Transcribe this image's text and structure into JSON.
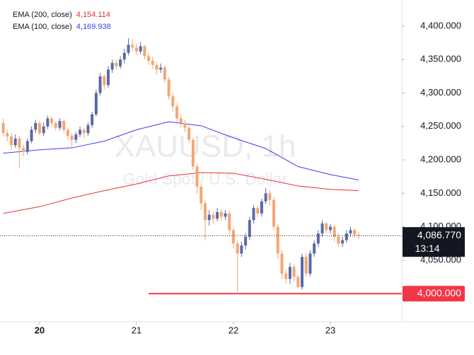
{
  "chart_data": {
    "type": "candlestick",
    "title": "XAUUSD, 1h",
    "subtitle": "Gold Spot / U.S. Dollar",
    "up_color": "#5b6aa6",
    "down_color": "#f5a672",
    "xlim": [
      -9.8,
      89.7
    ],
    "xticks": [
      {
        "value": 0,
        "label": "20"
      },
      {
        "value": 24,
        "label": "21"
      },
      {
        "value": 48,
        "label": "22"
      },
      {
        "value": 72,
        "label": "23"
      }
    ],
    "ylim": [
      3958,
      4439
    ],
    "yticks": [
      {
        "value": 4050,
        "label": "4,050.000"
      },
      {
        "value": 4100,
        "label": "4,100.000"
      },
      {
        "value": 4150,
        "label": "4,150.000"
      },
      {
        "value": 4200,
        "label": "4,200.000"
      },
      {
        "value": 4250,
        "label": "4,250.000"
      },
      {
        "value": 4300,
        "label": "4,300.000"
      },
      {
        "value": 4350,
        "label": "4,350.000"
      },
      {
        "value": 4400,
        "label": "4,400.000"
      }
    ],
    "x": [
      -9,
      -8,
      -7,
      -6,
      -5,
      -4,
      -3,
      -2,
      -1,
      0,
      1,
      2,
      3,
      4,
      5,
      6,
      7,
      8,
      9,
      10,
      11,
      12,
      13,
      14,
      15,
      16,
      17,
      18,
      19,
      20,
      21,
      22,
      23,
      24,
      25,
      26,
      27,
      28,
      29,
      30,
      31,
      32,
      33,
      34,
      35,
      36,
      37,
      38,
      39,
      40,
      41,
      42,
      43,
      44,
      45,
      46,
      47,
      48,
      49,
      50,
      51,
      52,
      53,
      54,
      55,
      56,
      57,
      58,
      59,
      60,
      61,
      62,
      63,
      64,
      65,
      66,
      67,
      68,
      69,
      70,
      71,
      72,
      73,
      74,
      75,
      76,
      77,
      78,
      79
    ],
    "open": [
      4255,
      4240,
      4235,
      4222,
      4232,
      4218,
      4212,
      4228,
      4245,
      4255,
      4240,
      4250,
      4262,
      4255,
      4248,
      4258,
      4245,
      4236,
      4230,
      4238,
      4245,
      4240,
      4252,
      4268,
      4300,
      4325,
      4312,
      4335,
      4345,
      4340,
      4350,
      4360,
      4372,
      4368,
      4362,
      4370,
      4355,
      4348,
      4342,
      4335,
      4338,
      4320,
      4295,
      4280,
      4262,
      4255,
      4248,
      4230,
      4190,
      4160,
      4135,
      4110,
      4118,
      4112,
      4122,
      4115,
      4120,
      4095,
      4075,
      4060,
      4072,
      4085,
      4110,
      4128,
      4120,
      4138,
      4150,
      4140,
      4100,
      4060,
      4030,
      4022,
      4040,
      4025,
      4010,
      4055,
      4030,
      4060,
      4075,
      4090,
      4105,
      4095,
      4100,
      4085,
      4075,
      4080,
      4090,
      4095,
      4088
    ],
    "high": [
      4262,
      4245,
      4240,
      4238,
      4236,
      4222,
      4232,
      4250,
      4260,
      4258,
      4256,
      4266,
      4265,
      4258,
      4262,
      4260,
      4248,
      4240,
      4242,
      4250,
      4248,
      4256,
      4272,
      4305,
      4330,
      4328,
      4340,
      4350,
      4350,
      4355,
      4366,
      4382,
      4380,
      4374,
      4376,
      4372,
      4360,
      4354,
      4346,
      4344,
      4342,
      4324,
      4300,
      4285,
      4268,
      4260,
      4252,
      4234,
      4195,
      4165,
      4140,
      4125,
      4122,
      4128,
      4126,
      4125,
      4124,
      4100,
      4080,
      4078,
      4090,
      4115,
      4132,
      4132,
      4142,
      4158,
      4155,
      4145,
      4105,
      4065,
      4036,
      4046,
      4044,
      4028,
      4060,
      4060,
      4065,
      4080,
      4095,
      4110,
      4108,
      4104,
      4103,
      4090,
      4085,
      4095,
      4100,
      4098,
      4092
    ],
    "low": [
      4235,
      4228,
      4215,
      4218,
      4188,
      4205,
      4208,
      4225,
      4240,
      4236,
      4236,
      4246,
      4250,
      4244,
      4244,
      4240,
      4230,
      4218,
      4225,
      4234,
      4232,
      4236,
      4248,
      4265,
      4296,
      4305,
      4308,
      4330,
      4335,
      4336,
      4345,
      4356,
      4362,
      4356,
      4358,
      4350,
      4342,
      4336,
      4328,
      4330,
      4315,
      4290,
      4272,
      4256,
      4248,
      4242,
      4225,
      4185,
      4150,
      4125,
      4080,
      4102,
      4105,
      4108,
      4108,
      4110,
      4088,
      4068,
      4000,
      4055,
      4066,
      4080,
      4105,
      4115,
      4115,
      4134,
      4132,
      4095,
      4052,
      4022,
      4015,
      4015,
      4018,
      4008,
      4006,
      4025,
      4026,
      4055,
      4070,
      4085,
      4090,
      4090,
      4078,
      4070,
      4070,
      4076,
      4085,
      4084,
      4082
    ],
    "close": [
      4240,
      4235,
      4222,
      4232,
      4218,
      4212,
      4228,
      4245,
      4255,
      4240,
      4250,
      4262,
      4255,
      4248,
      4258,
      4245,
      4236,
      4230,
      4238,
      4245,
      4240,
      4252,
      4268,
      4300,
      4325,
      4312,
      4335,
      4345,
      4340,
      4350,
      4360,
      4372,
      4368,
      4362,
      4370,
      4355,
      4348,
      4342,
      4335,
      4338,
      4320,
      4295,
      4280,
      4262,
      4255,
      4248,
      4230,
      4190,
      4160,
      4135,
      4110,
      4118,
      4112,
      4122,
      4115,
      4120,
      4095,
      4075,
      4060,
      4072,
      4085,
      4110,
      4128,
      4120,
      4138,
      4150,
      4140,
      4100,
      4060,
      4030,
      4022,
      4040,
      4025,
      4010,
      4055,
      4030,
      4060,
      4075,
      4090,
      4105,
      4095,
      4100,
      4085,
      4075,
      4080,
      4090,
      4095,
      4088,
      4086.77
    ],
    "series": [
      {
        "name": "EMA (200, close)",
        "color": "#e8303a",
        "value_label": "4,154.114",
        "x": [
          -9,
          0,
          8,
          16,
          24,
          32,
          40,
          48,
          56,
          64,
          72,
          79
        ],
        "values": [
          4120,
          4130,
          4143,
          4154,
          4164,
          4176,
          4181,
          4180,
          4171,
          4161,
          4156,
          4154.114
        ]
      },
      {
        "name": "EMA (100, close)",
        "color": "#3d3df0",
        "value_label": "4,169.938",
        "x": [
          -9,
          0,
          8,
          16,
          24,
          32,
          40,
          48,
          56,
          64,
          72,
          79
        ],
        "values": [
          4210,
          4215,
          4218,
          4228,
          4245,
          4257,
          4251,
          4233,
          4217,
          4190,
          4178,
          4169.938
        ]
      }
    ],
    "last_price": {
      "value": 4086.77,
      "label": "4,086.770"
    },
    "countdown": "13:14",
    "hline": {
      "value": 4000,
      "label": "4,000.000",
      "color": "#f23645"
    }
  }
}
